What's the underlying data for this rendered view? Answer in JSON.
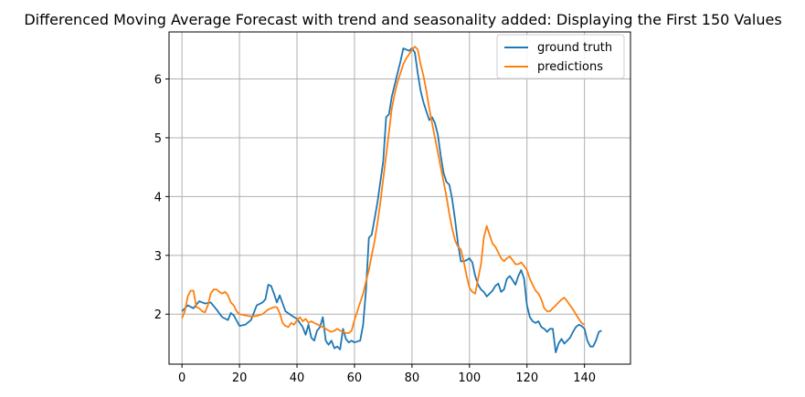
{
  "chart_data": {
    "type": "line",
    "title": "Differenced Moving Average Forecast with trend and seasonality added: Displaying the First 150 Values",
    "xlabel": "",
    "ylabel": "",
    "xlim": [
      -4.5,
      156
    ],
    "ylim": [
      1.15,
      6.8
    ],
    "xticks": [
      0,
      20,
      40,
      60,
      80,
      100,
      120,
      140
    ],
    "yticks": [
      2,
      3,
      4,
      5,
      6
    ],
    "grid": true,
    "legend_position": "top-right",
    "series": [
      {
        "name": "ground truth",
        "color": "#1f77b4",
        "points": [
          [
            0,
            2.05
          ],
          [
            2,
            2.15
          ],
          [
            4,
            2.1
          ],
          [
            6,
            2.22
          ],
          [
            8,
            2.18
          ],
          [
            10,
            2.2
          ],
          [
            12,
            2.08
          ],
          [
            14,
            1.95
          ],
          [
            16,
            1.9
          ],
          [
            17,
            2.02
          ],
          [
            18,
            1.98
          ],
          [
            20,
            1.8
          ],
          [
            22,
            1.82
          ],
          [
            24,
            1.9
          ],
          [
            26,
            2.15
          ],
          [
            28,
            2.2
          ],
          [
            29,
            2.25
          ],
          [
            30,
            2.5
          ],
          [
            31,
            2.48
          ],
          [
            32,
            2.35
          ],
          [
            33,
            2.2
          ],
          [
            34,
            2.32
          ],
          [
            36,
            2.05
          ],
          [
            38,
            1.98
          ],
          [
            40,
            1.92
          ],
          [
            42,
            1.78
          ],
          [
            43,
            1.65
          ],
          [
            44,
            1.82
          ],
          [
            45,
            1.6
          ],
          [
            46,
            1.55
          ],
          [
            47,
            1.72
          ],
          [
            48,
            1.78
          ],
          [
            49,
            1.95
          ],
          [
            50,
            1.55
          ],
          [
            51,
            1.48
          ],
          [
            52,
            1.55
          ],
          [
            53,
            1.42
          ],
          [
            54,
            1.45
          ],
          [
            55,
            1.4
          ],
          [
            56,
            1.75
          ],
          [
            57,
            1.58
          ],
          [
            58,
            1.52
          ],
          [
            59,
            1.55
          ],
          [
            60,
            1.52
          ],
          [
            62,
            1.55
          ],
          [
            63,
            1.82
          ],
          [
            64,
            2.4
          ],
          [
            65,
            3.3
          ],
          [
            66,
            3.35
          ],
          [
            68,
            3.9
          ],
          [
            70,
            4.6
          ],
          [
            71,
            5.35
          ],
          [
            72,
            5.4
          ],
          [
            73,
            5.7
          ],
          [
            75,
            6.1
          ],
          [
            76,
            6.3
          ],
          [
            77,
            6.52
          ],
          [
            78,
            6.5
          ],
          [
            79,
            6.48
          ],
          [
            80,
            6.52
          ],
          [
            81,
            6.45
          ],
          [
            82,
            6.1
          ],
          [
            83,
            5.8
          ],
          [
            84,
            5.6
          ],
          [
            85,
            5.45
          ],
          [
            86,
            5.3
          ],
          [
            87,
            5.35
          ],
          [
            88,
            5.25
          ],
          [
            89,
            5.05
          ],
          [
            90,
            4.7
          ],
          [
            91,
            4.4
          ],
          [
            92,
            4.25
          ],
          [
            93,
            4.2
          ],
          [
            94,
            3.95
          ],
          [
            95,
            3.6
          ],
          [
            96,
            3.2
          ],
          [
            97,
            2.9
          ],
          [
            98,
            2.9
          ],
          [
            99,
            2.92
          ],
          [
            100,
            2.95
          ],
          [
            101,
            2.88
          ],
          [
            102,
            2.65
          ],
          [
            103,
            2.5
          ],
          [
            104,
            2.42
          ],
          [
            105,
            2.38
          ],
          [
            106,
            2.3
          ],
          [
            107,
            2.35
          ],
          [
            108,
            2.4
          ],
          [
            109,
            2.48
          ],
          [
            110,
            2.52
          ],
          [
            111,
            2.38
          ],
          [
            112,
            2.42
          ],
          [
            113,
            2.6
          ],
          [
            114,
            2.65
          ],
          [
            115,
            2.58
          ],
          [
            116,
            2.5
          ],
          [
            117,
            2.65
          ],
          [
            118,
            2.75
          ],
          [
            119,
            2.6
          ],
          [
            120,
            2.15
          ],
          [
            121,
            1.95
          ],
          [
            122,
            1.88
          ],
          [
            123,
            1.85
          ],
          [
            124,
            1.88
          ],
          [
            125,
            1.78
          ],
          [
            126,
            1.75
          ],
          [
            127,
            1.7
          ],
          [
            128,
            1.75
          ],
          [
            129,
            1.75
          ],
          [
            130,
            1.35
          ],
          [
            131,
            1.5
          ],
          [
            132,
            1.58
          ],
          [
            133,
            1.5
          ],
          [
            134,
            1.55
          ],
          [
            135,
            1.6
          ],
          [
            136,
            1.7
          ],
          [
            137,
            1.78
          ],
          [
            138,
            1.82
          ],
          [
            139,
            1.8
          ],
          [
            140,
            1.75
          ],
          [
            141,
            1.55
          ],
          [
            142,
            1.45
          ],
          [
            143,
            1.45
          ],
          [
            144,
            1.55
          ],
          [
            145,
            1.7
          ],
          [
            146,
            1.72
          ]
        ]
      },
      {
        "name": "predictions",
        "color": "#ff7f0e",
        "points": [
          [
            0,
            1.93
          ],
          [
            1,
            2.05
          ],
          [
            2,
            2.3
          ],
          [
            3,
            2.4
          ],
          [
            4,
            2.4
          ],
          [
            5,
            2.12
          ],
          [
            6,
            2.1
          ],
          [
            7,
            2.05
          ],
          [
            8,
            2.03
          ],
          [
            9,
            2.15
          ],
          [
            10,
            2.35
          ],
          [
            11,
            2.42
          ],
          [
            12,
            2.42
          ],
          [
            13,
            2.38
          ],
          [
            14,
            2.35
          ],
          [
            15,
            2.38
          ],
          [
            16,
            2.32
          ],
          [
            17,
            2.2
          ],
          [
            18,
            2.15
          ],
          [
            19,
            2.05
          ],
          [
            20,
            2.0
          ],
          [
            22,
            1.98
          ],
          [
            24,
            1.96
          ],
          [
            26,
            1.97
          ],
          [
            28,
            2.0
          ],
          [
            30,
            2.08
          ],
          [
            32,
            2.12
          ],
          [
            33,
            2.12
          ],
          [
            34,
            2.02
          ],
          [
            35,
            1.85
          ],
          [
            36,
            1.8
          ],
          [
            37,
            1.78
          ],
          [
            38,
            1.85
          ],
          [
            39,
            1.82
          ],
          [
            40,
            1.9
          ],
          [
            41,
            1.95
          ],
          [
            42,
            1.88
          ],
          [
            43,
            1.92
          ],
          [
            44,
            1.85
          ],
          [
            45,
            1.88
          ],
          [
            46,
            1.85
          ],
          [
            47,
            1.83
          ],
          [
            48,
            1.8
          ],
          [
            49,
            1.78
          ],
          [
            50,
            1.75
          ],
          [
            51,
            1.72
          ],
          [
            52,
            1.7
          ],
          [
            53,
            1.72
          ],
          [
            54,
            1.75
          ],
          [
            55,
            1.72
          ],
          [
            56,
            1.7
          ],
          [
            57,
            1.68
          ],
          [
            58,
            1.68
          ],
          [
            59,
            1.72
          ],
          [
            60,
            1.9
          ],
          [
            61,
            2.05
          ],
          [
            62,
            2.2
          ],
          [
            63,
            2.35
          ],
          [
            64,
            2.55
          ],
          [
            65,
            2.75
          ],
          [
            66,
            3.0
          ],
          [
            67,
            3.25
          ],
          [
            68,
            3.55
          ],
          [
            69,
            3.9
          ],
          [
            70,
            4.3
          ],
          [
            71,
            4.7
          ],
          [
            72,
            5.1
          ],
          [
            73,
            5.5
          ],
          [
            74,
            5.75
          ],
          [
            75,
            5.95
          ],
          [
            76,
            6.1
          ],
          [
            77,
            6.25
          ],
          [
            78,
            6.35
          ],
          [
            79,
            6.42
          ],
          [
            80,
            6.5
          ],
          [
            81,
            6.55
          ],
          [
            82,
            6.5
          ],
          [
            83,
            6.25
          ],
          [
            84,
            6.05
          ],
          [
            85,
            5.8
          ],
          [
            86,
            5.5
          ],
          [
            87,
            5.25
          ],
          [
            88,
            5.0
          ],
          [
            89,
            4.75
          ],
          [
            90,
            4.5
          ],
          [
            91,
            4.25
          ],
          [
            92,
            4.0
          ],
          [
            93,
            3.7
          ],
          [
            94,
            3.45
          ],
          [
            95,
            3.25
          ],
          [
            96,
            3.15
          ],
          [
            97,
            3.1
          ],
          [
            98,
            2.9
          ],
          [
            99,
            2.65
          ],
          [
            100,
            2.45
          ],
          [
            101,
            2.38
          ],
          [
            102,
            2.35
          ],
          [
            103,
            2.6
          ],
          [
            104,
            2.85
          ],
          [
            105,
            3.3
          ],
          [
            106,
            3.5
          ],
          [
            107,
            3.35
          ],
          [
            108,
            3.2
          ],
          [
            109,
            3.15
          ],
          [
            110,
            3.05
          ],
          [
            111,
            2.95
          ],
          [
            112,
            2.9
          ],
          [
            113,
            2.95
          ],
          [
            114,
            2.98
          ],
          [
            115,
            2.92
          ],
          [
            116,
            2.85
          ],
          [
            117,
            2.85
          ],
          [
            118,
            2.88
          ],
          [
            119,
            2.82
          ],
          [
            120,
            2.75
          ],
          [
            121,
            2.6
          ],
          [
            122,
            2.5
          ],
          [
            123,
            2.4
          ],
          [
            124,
            2.35
          ],
          [
            125,
            2.25
          ],
          [
            126,
            2.1
          ],
          [
            127,
            2.05
          ],
          [
            128,
            2.05
          ],
          [
            129,
            2.1
          ],
          [
            130,
            2.15
          ],
          [
            131,
            2.2
          ],
          [
            132,
            2.25
          ],
          [
            133,
            2.28
          ],
          [
            134,
            2.22
          ],
          [
            135,
            2.15
          ],
          [
            136,
            2.08
          ],
          [
            137,
            2.0
          ],
          [
            138,
            1.92
          ],
          [
            139,
            1.85
          ],
          [
            140,
            1.82
          ]
        ]
      }
    ]
  }
}
